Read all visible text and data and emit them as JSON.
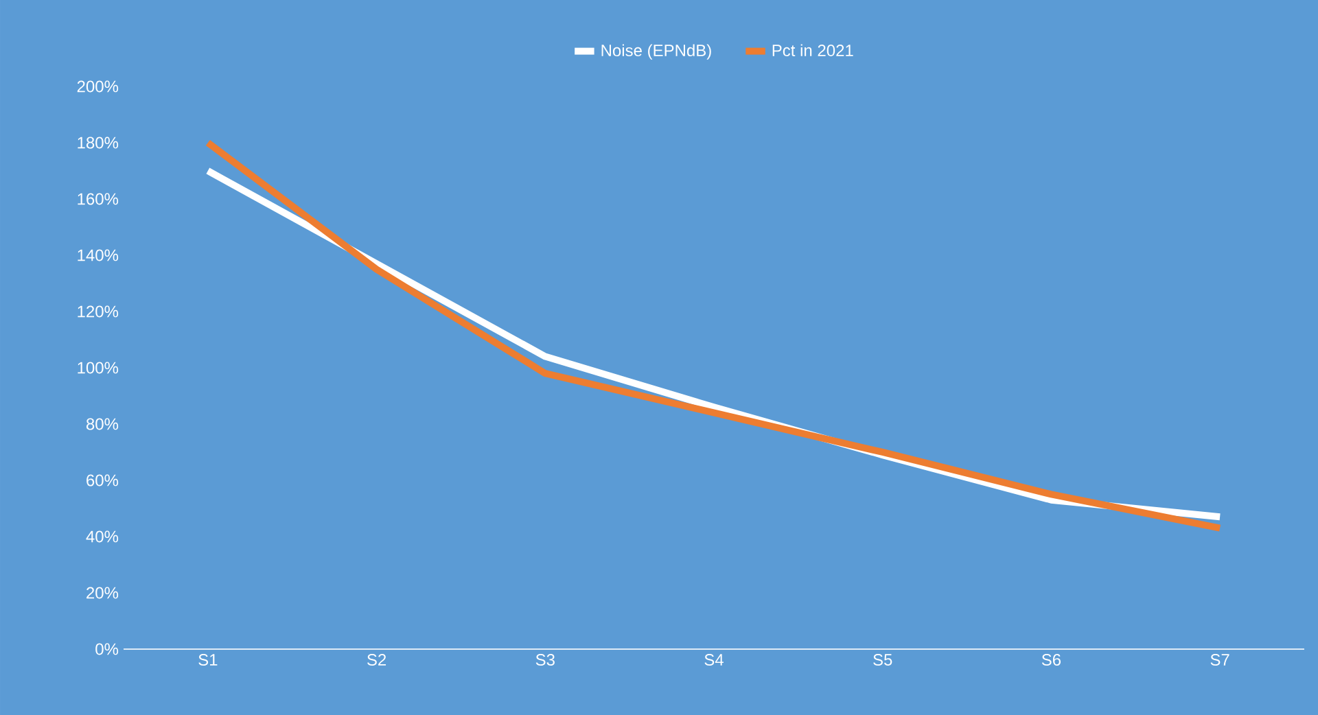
{
  "chart_data": {
    "type": "line",
    "categories": [
      "S1",
      "S2",
      "S3",
      "S4",
      "S5",
      "S6",
      "S7"
    ],
    "series": [
      {
        "name": "Noise (EPNdB)",
        "color": "#ffffff",
        "values": [
          170,
          137,
          104,
          86,
          69,
          53,
          47
        ]
      },
      {
        "name": "Pct in 2021",
        "color": "#ed7d31",
        "values": [
          180,
          135,
          98,
          84,
          70,
          55,
          43
        ]
      }
    ],
    "ylim": [
      0,
      200
    ],
    "yticks": [
      {
        "value": 0,
        "label": "0%"
      },
      {
        "value": 20,
        "label": "20%"
      },
      {
        "value": 40,
        "label": "40%"
      },
      {
        "value": 60,
        "label": "60%"
      },
      {
        "value": 80,
        "label": "80%"
      },
      {
        "value": 100,
        "label": "100%"
      },
      {
        "value": 120,
        "label": "120%"
      },
      {
        "value": 140,
        "label": "140%"
      },
      {
        "value": 160,
        "label": "160%"
      },
      {
        "value": 180,
        "label": "180%"
      },
      {
        "value": 200,
        "label": "200%"
      }
    ],
    "legend": "top",
    "grid": false,
    "marker": "none",
    "line_style": "solid"
  }
}
